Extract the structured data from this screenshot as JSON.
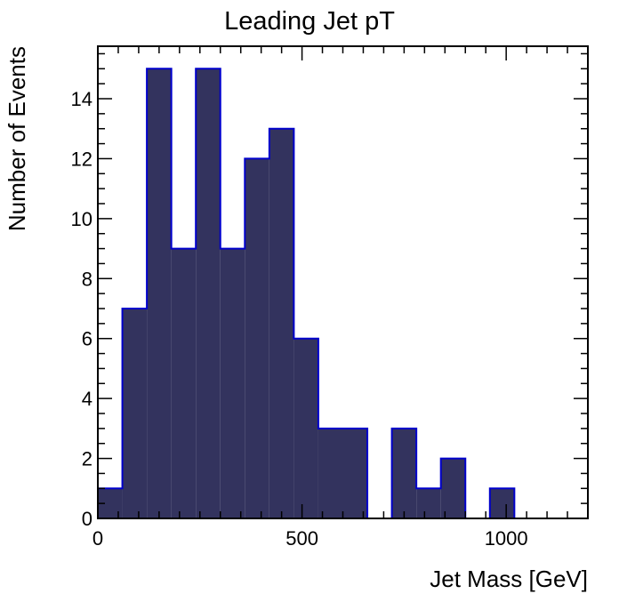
{
  "chart_data": {
    "type": "bar",
    "title": "Leading Jet pT",
    "xlabel": "Jet Mass [GeV]",
    "ylabel": "Number of Events",
    "xlim": [
      0,
      1200
    ],
    "ylim": [
      0,
      15.75
    ],
    "grid": false,
    "bin_edges": [
      0,
      60,
      120,
      180,
      240,
      300,
      360,
      420,
      480,
      540,
      600,
      660,
      720,
      780,
      840,
      900,
      960,
      1020,
      1080,
      1140,
      1200
    ],
    "values": [
      1,
      7,
      15,
      9,
      15,
      9,
      12,
      13,
      6,
      3,
      3,
      0,
      3,
      1,
      2,
      0,
      1,
      0,
      0,
      0
    ],
    "x_ticks": [
      0,
      500,
      1000
    ],
    "x_tick_labels": [
      "0",
      "500",
      "1000"
    ],
    "y_ticks": [
      0,
      2,
      4,
      6,
      8,
      10,
      12,
      14
    ],
    "y_tick_labels": [
      "0",
      "2",
      "4",
      "6",
      "8",
      "10",
      "12",
      "14"
    ],
    "colors": {
      "fill": "#33335e",
      "edge": "#0000cc",
      "frame": "#000000"
    }
  }
}
